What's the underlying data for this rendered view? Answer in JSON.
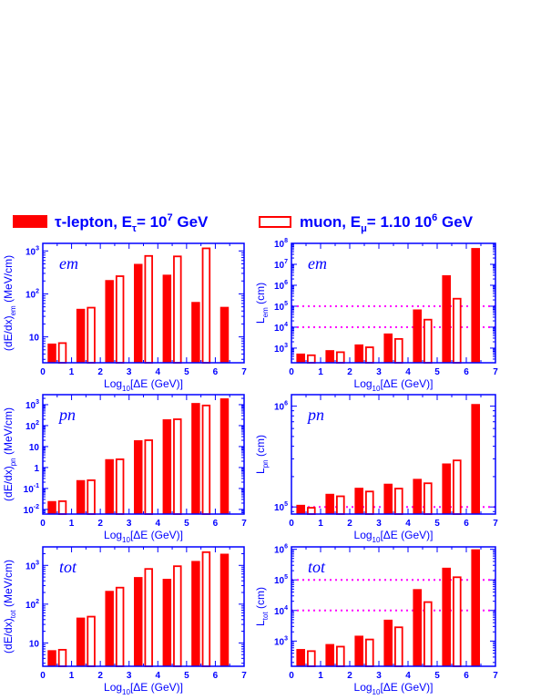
{
  "legend": {
    "tau": {
      "label": "τ-lepton, E",
      "sub": "τ",
      "eq": "= 10",
      "sup": "7",
      "unit": " GeV"
    },
    "muon": {
      "label": "muon, E",
      "sub": "μ",
      "eq": "= 1.10 10",
      "sup": "6",
      "unit": " GeV"
    }
  },
  "colors": {
    "tau": "#ff0000",
    "muon": "#ff0000",
    "axis": "#0000ff",
    "ref_line": "#ff00ff"
  },
  "chart_data": [
    {
      "type": "bar",
      "panel": "em",
      "scale": "log",
      "xlabel": "Log10[ΔE (GeV)]",
      "ylabel": "(dE/dx)em (MeV/cm)",
      "xlim": [
        0,
        7
      ],
      "ylim": [
        2.5,
        1500
      ],
      "y_ticks": [
        {
          "v": 10,
          "m": "10",
          "e": ""
        },
        {
          "v": 100,
          "m": "10",
          "e": "2"
        },
        {
          "v": 1000,
          "m": "10",
          "e": "3"
        }
      ],
      "x_ticks": [
        "0",
        "1",
        "2",
        "3",
        "4",
        "5",
        "6",
        "7"
      ],
      "series": [
        {
          "name": "τ-lepton",
          "fill": "solid",
          "x": [
            0.5,
            1.5,
            2.5,
            3.5,
            4.5,
            5.5,
            6.5
          ],
          "values": [
            7,
            45,
            210,
            500,
            280,
            65,
            50
          ]
        },
        {
          "name": "muon",
          "fill": "hollow",
          "x": [
            0.5,
            1.5,
            2.5,
            3.5,
            4.5,
            5.5
          ],
          "values": [
            7.5,
            50,
            270,
            800,
            780,
            1200
          ]
        }
      ],
      "ref_lines": []
    },
    {
      "type": "bar",
      "panel": "em",
      "scale": "log",
      "xlabel": "Log10[ΔE (GeV)]",
      "ylabel": "Lem (cm)",
      "xlim": [
        0,
        7
      ],
      "ylim": [
        200,
        100000000
      ],
      "y_ticks": [
        {
          "v": 1000,
          "m": "10",
          "e": "3"
        },
        {
          "v": 10000,
          "m": "10",
          "e": "4"
        },
        {
          "v": 100000,
          "m": "10",
          "e": "5"
        },
        {
          "v": 1000000,
          "m": "10",
          "e": "6"
        },
        {
          "v": 10000000,
          "m": "10",
          "e": "7"
        },
        {
          "v": 100000000,
          "m": "10",
          "e": "8"
        }
      ],
      "x_ticks": [
        "0",
        "1",
        "2",
        "3",
        "4",
        "5",
        "6",
        "7"
      ],
      "series": [
        {
          "name": "τ-lepton",
          "fill": "solid",
          "x": [
            0.5,
            1.5,
            2.5,
            3.5,
            4.5,
            5.5,
            6.5
          ],
          "values": [
            550,
            800,
            1500,
            5000,
            70000,
            3000000,
            60000000
          ]
        },
        {
          "name": "muon",
          "fill": "hollow",
          "x": [
            0.5,
            1.5,
            2.5,
            3.5,
            4.5,
            5.5
          ],
          "values": [
            500,
            700,
            1200,
            3000,
            25000,
            250000
          ]
        }
      ],
      "ref_lines": [
        100000,
        10000
      ]
    },
    {
      "type": "bar",
      "panel": "pn",
      "scale": "log",
      "xlabel": "Log10[ΔE (GeV)]",
      "ylabel": "(dE/dx)pn (MeV/cm)",
      "xlim": [
        0,
        7
      ],
      "ylim": [
        0.006,
        3000
      ],
      "y_ticks": [
        {
          "v": 0.01,
          "m": "10",
          "e": "-2"
        },
        {
          "v": 0.1,
          "m": "10",
          "e": "-1"
        },
        {
          "v": 1,
          "m": "1",
          "e": ""
        },
        {
          "v": 10,
          "m": "10",
          "e": ""
        },
        {
          "v": 100,
          "m": "10",
          "e": "2"
        },
        {
          "v": 1000,
          "m": "10",
          "e": "3"
        }
      ],
      "x_ticks": [
        "0",
        "1",
        "2",
        "3",
        "4",
        "5",
        "6",
        "7"
      ],
      "series": [
        {
          "name": "τ-lepton",
          "fill": "solid",
          "x": [
            0.5,
            1.5,
            2.5,
            3.5,
            4.5,
            5.5,
            6.5
          ],
          "values": [
            0.025,
            0.25,
            2.5,
            20,
            200,
            1200,
            2000
          ]
        },
        {
          "name": "muon",
          "fill": "hollow",
          "x": [
            0.5,
            1.5,
            2.5,
            3.5,
            4.5,
            5.5
          ],
          "values": [
            0.027,
            0.27,
            2.7,
            22,
            220,
            1000
          ]
        }
      ],
      "ref_lines": []
    },
    {
      "type": "bar",
      "panel": "pn",
      "scale": "log",
      "xlabel": "Log10[ΔE (GeV)]",
      "ylabel": "Lpn (cm)",
      "xlim": [
        0,
        7
      ],
      "ylim": [
        85000,
        1300000
      ],
      "y_ticks": [
        {
          "v": 100000,
          "m": "10",
          "e": "5"
        },
        {
          "v": 1000000,
          "m": "10",
          "e": "6"
        }
      ],
      "x_ticks": [
        "0",
        "1",
        "2",
        "3",
        "4",
        "5",
        "6",
        "7"
      ],
      "series": [
        {
          "name": "τ-lepton",
          "fill": "solid",
          "x": [
            0.5,
            1.5,
            2.5,
            3.5,
            4.5,
            5.5,
            6.5
          ],
          "values": [
            105000,
            135000,
            155000,
            170000,
            190000,
            270000,
            1050000
          ]
        },
        {
          "name": "muon",
          "fill": "hollow",
          "x": [
            0.5,
            1.5,
            2.5,
            3.5,
            4.5,
            5.5
          ],
          "values": [
            100000,
            130000,
            145000,
            155000,
            175000,
            295000
          ]
        }
      ],
      "ref_lines": [
        100000
      ]
    },
    {
      "type": "bar",
      "panel": "tot",
      "scale": "log",
      "xlabel": "Log10[ΔE (GeV)]",
      "ylabel": "(dE/dx)tot (MeV/cm)",
      "xlim": [
        0,
        7
      ],
      "ylim": [
        2.5,
        3000
      ],
      "y_ticks": [
        {
          "v": 10,
          "m": "10",
          "e": ""
        },
        {
          "v": 100,
          "m": "10",
          "e": "2"
        },
        {
          "v": 1000,
          "m": "10",
          "e": "3"
        }
      ],
      "x_ticks": [
        "0",
        "1",
        "2",
        "3",
        "4",
        "5",
        "6",
        "7"
      ],
      "series": [
        {
          "name": "τ-lepton",
          "fill": "solid",
          "x": [
            0.5,
            1.5,
            2.5,
            3.5,
            4.5,
            5.5,
            6.5
          ],
          "values": [
            6.5,
            45,
            220,
            500,
            450,
            1300,
            2000
          ]
        },
        {
          "name": "muon",
          "fill": "hollow",
          "x": [
            0.5,
            1.5,
            2.5,
            3.5,
            4.5,
            5.5
          ],
          "values": [
            7,
            50,
            280,
            850,
            1000,
            2300
          ]
        }
      ],
      "ref_lines": []
    },
    {
      "type": "bar",
      "panel": "tot",
      "scale": "log",
      "xlabel": "Log10[ΔE (GeV)]",
      "ylabel": "Ltot (cm)",
      "xlim": [
        0,
        7
      ],
      "ylim": [
        150,
        1200000
      ],
      "y_ticks": [
        {
          "v": 1000,
          "m": "10",
          "e": "3"
        },
        {
          "v": 10000,
          "m": "10",
          "e": "4"
        },
        {
          "v": 100000,
          "m": "10",
          "e": "5"
        },
        {
          "v": 1000000,
          "m": "10",
          "e": "6"
        }
      ],
      "x_ticks": [
        "0",
        "1",
        "2",
        "3",
        "4",
        "5",
        "6",
        "7"
      ],
      "series": [
        {
          "name": "τ-lepton",
          "fill": "solid",
          "x": [
            0.5,
            1.5,
            2.5,
            3.5,
            4.5,
            5.5,
            6.5
          ],
          "values": [
            550,
            800,
            1500,
            5000,
            50000,
            250000,
            1000000
          ]
        },
        {
          "name": "muon",
          "fill": "hollow",
          "x": [
            0.5,
            1.5,
            2.5,
            3.5,
            4.5,
            5.5
          ],
          "values": [
            500,
            700,
            1200,
            3000,
            20000,
            130000
          ]
        }
      ],
      "ref_lines": [
        100000,
        10000
      ]
    }
  ]
}
